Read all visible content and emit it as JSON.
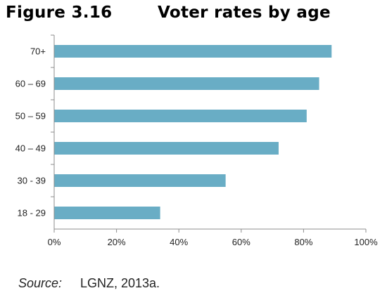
{
  "figure": {
    "number": "Figure 3.16",
    "title": "Voter rates by age"
  },
  "source": {
    "label": "Source:",
    "text": "LGNZ, 2013a."
  },
  "colors": {
    "bar": "#69adc5",
    "axis": "#8c8c8c"
  },
  "chart_data": {
    "type": "bar",
    "orientation": "horizontal",
    "title": "Voter rates by age",
    "categories": [
      "70+",
      "60 – 69",
      "50 – 59",
      "40 – 49",
      "30 - 39",
      "18 - 29"
    ],
    "values": [
      89,
      85,
      81,
      72,
      55,
      34
    ],
    "xlabel": "",
    "ylabel": "",
    "xlim": [
      0,
      100
    ],
    "x_ticks": [
      "0%",
      "20%",
      "40%",
      "60%",
      "80%",
      "100%"
    ],
    "x_tick_values": [
      0,
      20,
      40,
      60,
      80,
      100
    ],
    "grid": false,
    "legend": "none"
  }
}
